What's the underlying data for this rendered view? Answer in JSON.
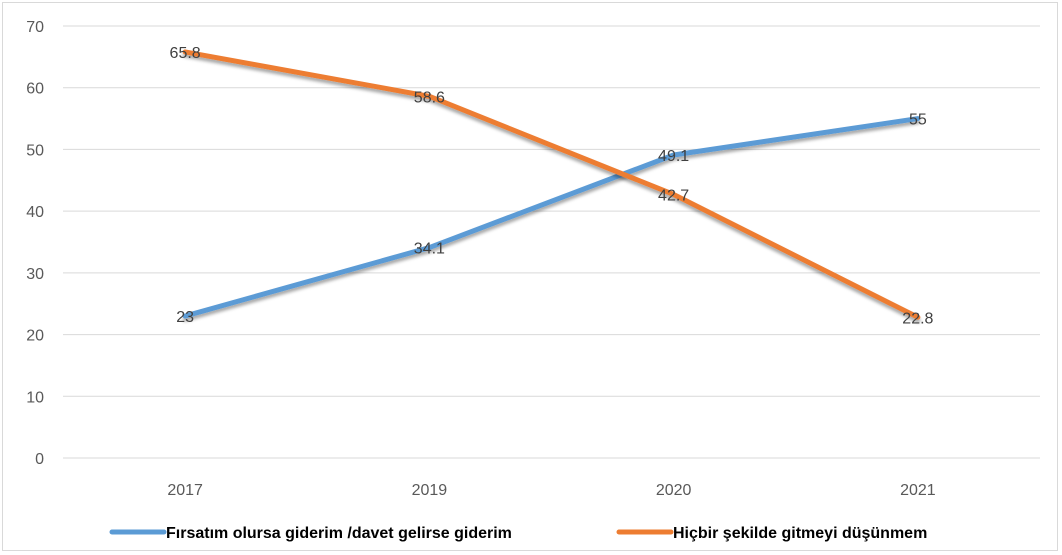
{
  "chart_data": {
    "type": "line",
    "title": "",
    "xlabel": "",
    "ylabel": "",
    "categories": [
      "2017",
      "2019",
      "2020",
      "2021"
    ],
    "ylim": [
      0,
      70
    ],
    "yticks": [
      0,
      10,
      20,
      30,
      40,
      50,
      60,
      70
    ],
    "grid": true,
    "legend": "bottom",
    "series": [
      {
        "name": "Fırsatım olursa giderim /davet gelirse giderim",
        "values": [
          23,
          34.1,
          49.1,
          55
        ],
        "labels": [
          "23",
          "34.1",
          "49.1",
          "55"
        ],
        "color": "#5b9bd5"
      },
      {
        "name": "Hiçbir şekilde gitmeyi düşünmem",
        "values": [
          65.8,
          58.6,
          42.7,
          22.8
        ],
        "labels": [
          "65.8",
          "58.6",
          "42.7",
          "22.8"
        ],
        "color": "#ed7d31"
      }
    ]
  }
}
